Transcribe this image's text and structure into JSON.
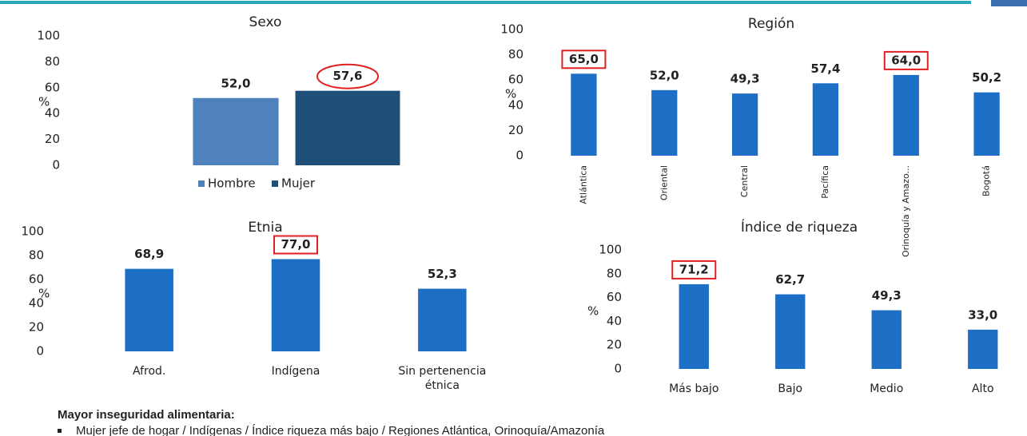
{
  "chart_data": [
    {
      "type": "bar",
      "title": "Sexo",
      "ylabel": "%",
      "categories": [
        null
      ],
      "series": [
        {
          "name": "Hombre",
          "color": "#4f81bd",
          "values": [
            52.0
          ],
          "value_labels": [
            "52,0"
          ]
        },
        {
          "name": "Mujer",
          "color": "#1f4e79",
          "values": [
            57.6
          ],
          "value_labels": [
            "57,6"
          ]
        }
      ],
      "ylim": [
        0,
        100
      ],
      "yticks": [
        0,
        20,
        40,
        60,
        80,
        100
      ],
      "legend": "bottom",
      "highlighted": [
        1
      ]
    },
    {
      "type": "bar",
      "title": "Región",
      "ylabel": "%",
      "categories": [
        "Atlántica",
        "Oriental",
        "Central",
        "Pacífica",
        "Orinoquía y Amazo...",
        "Bogotá"
      ],
      "values": [
        65.0,
        52.0,
        49.3,
        57.4,
        64.0,
        50.2
      ],
      "value_labels": [
        "65,0",
        "52,0",
        "49,3",
        "57,4",
        "64,0",
        "50,2"
      ],
      "color": "#1c6fc4",
      "ylim": [
        0,
        100
      ],
      "yticks": [
        0,
        20,
        40,
        60,
        80,
        100
      ],
      "highlighted": [
        0,
        4
      ]
    },
    {
      "type": "bar",
      "title": "Etnia",
      "ylabel": "%",
      "categories": [
        "Afrod.",
        "Indígena",
        "Sin pertenencia étnica"
      ],
      "values": [
        68.9,
        77.0,
        52.3
      ],
      "value_labels": [
        "68,9",
        "77,0",
        "52,3"
      ],
      "color": "#1c6fc4",
      "ylim": [
        0,
        100
      ],
      "yticks": [
        0,
        20,
        40,
        60,
        80,
        100
      ],
      "highlighted": [
        1
      ]
    },
    {
      "type": "bar",
      "title": "Índice de riqueza",
      "ylabel": "%",
      "categories": [
        "Más bajo",
        "Bajo",
        "Medio",
        "Alto"
      ],
      "values": [
        71.2,
        62.7,
        49.3,
        33.0
      ],
      "value_labels": [
        "71,2",
        "62,7",
        "49,3",
        "33,0"
      ],
      "color": "#1c6fc4",
      "ylim": [
        0,
        100
      ],
      "yticks": [
        0,
        20,
        40,
        60,
        80,
        100
      ],
      "highlighted": [
        0
      ]
    }
  ],
  "summary": {
    "title": "Mayor inseguridad alimentaria:",
    "items": [
      "Mujer jefe de hogar / Indígenas / Índice riqueza más bajo / Regiones Atlántica, Orinoquía/Amazonía"
    ]
  }
}
